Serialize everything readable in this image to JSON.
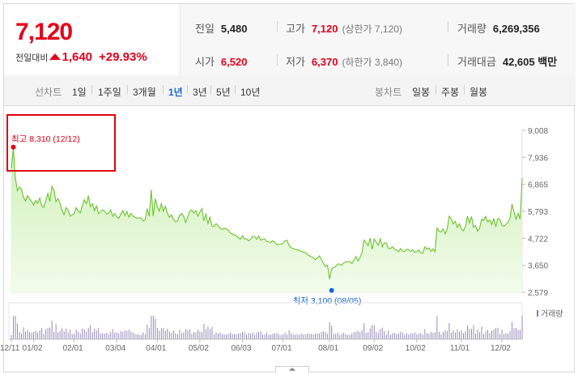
{
  "quote": {
    "price": "7,120",
    "change_label": "전일대비",
    "change_amount": "1,640",
    "change_pct": "+29.93%",
    "prev_label": "전일",
    "prev_value": "5,480",
    "high_label": "고가",
    "high_value": "7,120",
    "high_sub": "(상한가 7,120)",
    "volume_label": "거래량",
    "volume_value": "6,269,356",
    "open_label": "시가",
    "open_value": "6,520",
    "low_label": "저가",
    "low_value": "6,370",
    "low_sub": "(하한가 3,840)",
    "amount_label": "거래대금",
    "amount_value": "42,605 백만"
  },
  "period_bar": {
    "line_label": "선차트",
    "periods": [
      "1일",
      "1주일",
      "3개월",
      "1년",
      "3년",
      "5년",
      "10년"
    ],
    "selected": "1년",
    "candle_label": "봉차트",
    "candles": [
      "일봉",
      "주봉",
      "월봉"
    ]
  },
  "colors": {
    "up": "#e4001a",
    "line": "#6cc22e",
    "area_top": "#cdf0b5",
    "area_bottom": "#f3fcec",
    "high_marker": "#e4001a",
    "low_marker": "#1565d8",
    "volume": "#8a7fb0",
    "selected_period": "#1a6ad6"
  },
  "chart_data": {
    "type": "area",
    "y_ticks": [
      "9,008",
      "7,936",
      "6,865",
      "5,793",
      "4,722",
      "3,650",
      "2,579"
    ],
    "y_tick_values": [
      9008,
      7936,
      6865,
      5793,
      4722,
      3650,
      2579
    ],
    "ylim": [
      2579,
      9008
    ],
    "x_tick_labels": [
      "12/11",
      "01/02",
      "02/01",
      "03/04",
      "04/01",
      "05/02",
      "06/03",
      "07/01",
      "08/01",
      "09/02",
      "10/02",
      "11/01",
      "12/02"
    ],
    "x_tick_index": [
      0,
      11,
      31,
      52,
      72,
      93,
      114,
      134,
      157,
      179,
      200,
      222,
      242
    ],
    "high_annotation": "최고 8,310 (12/12)",
    "high_index": 1,
    "high_value": 8310,
    "low_annotation": "최저 3,100 (08/05)",
    "low_index": 158,
    "low_value": 3100,
    "volume_label": "거래량",
    "prices": [
      7500,
      8310,
      7100,
      6620,
      6750,
      6680,
      6350,
      6200,
      6420,
      6290,
      6180,
      6040,
      6230,
      6110,
      6320,
      6010,
      5950,
      6200,
      6500,
      6180,
      6790,
      6650,
      6180,
      6300,
      6110,
      5820,
      5660,
      5940,
      5830,
      5600,
      5650,
      5700,
      5940,
      5800,
      5730,
      6010,
      6250,
      6100,
      6410,
      5980,
      6100,
      5820,
      6010,
      5700,
      5770,
      5850,
      5790,
      5690,
      5720,
      5850,
      5590,
      5700,
      5580,
      5510,
      5680,
      5820,
      5620,
      5790,
      5560,
      5710,
      5600,
      5560,
      5520,
      5540,
      5530,
      5410,
      5450,
      5900,
      5600,
      6650,
      5600,
      6300,
      5990,
      5800,
      6100,
      5800,
      5990,
      5710,
      5560,
      5650,
      5450,
      5380,
      5410,
      5630,
      5710,
      5600,
      5350,
      5560,
      5800,
      5850,
      5720,
      5830,
      5600,
      5760,
      5900,
      5420,
      5680,
      5300,
      5560,
      5210,
      5190,
      5300,
      5230,
      5120,
      5080,
      5120,
      5100,
      5050,
      4940,
      4890,
      4850,
      4820,
      4750,
      4680,
      4820,
      4690,
      4710,
      4620,
      4680,
      4800,
      4790,
      4680,
      4810,
      4650,
      4680,
      4700,
      4590,
      4580,
      4560,
      4620,
      4550,
      4460,
      4480,
      4490,
      4520,
      4620,
      4640,
      4430,
      4350,
      4310,
      4290,
      4250,
      4260,
      4200,
      4180,
      4150,
      4080,
      4030,
      3980,
      3950,
      3870,
      3940,
      4020,
      3880,
      3720,
      3600,
      3650,
      3100,
      3500,
      3560,
      3600,
      3700,
      3700,
      3650,
      3750,
      3780,
      3790,
      3800,
      3720,
      3850,
      4000,
      3820,
      3950,
      4150,
      4650,
      4550,
      4430,
      4720,
      4280,
      4700,
      4560,
      4450,
      4700,
      4380,
      4550,
      4520,
      4320,
      4310,
      4390,
      4290,
      4250,
      4180,
      4320,
      4210,
      4200,
      4290,
      4260,
      4200,
      4270,
      4160,
      4200,
      4250,
      4150,
      4130,
      4380,
      4290,
      4340,
      4200,
      4300,
      4180,
      5130,
      5000,
      4970,
      5100,
      4900,
      5080,
      5600,
      5500,
      5290,
      5400,
      5150,
      5300,
      5100,
      5020,
      5180,
      5600,
      5330,
      5590,
      5160,
      5230,
      5000,
      5120,
      5480,
      5430,
      5590,
      5370,
      5450,
      5260,
      5500,
      5200,
      5510,
      5470,
      5240,
      5200,
      5280,
      5350,
      5520,
      6080,
      5780,
      5480,
      5710,
      5480,
      7120
    ]
  }
}
